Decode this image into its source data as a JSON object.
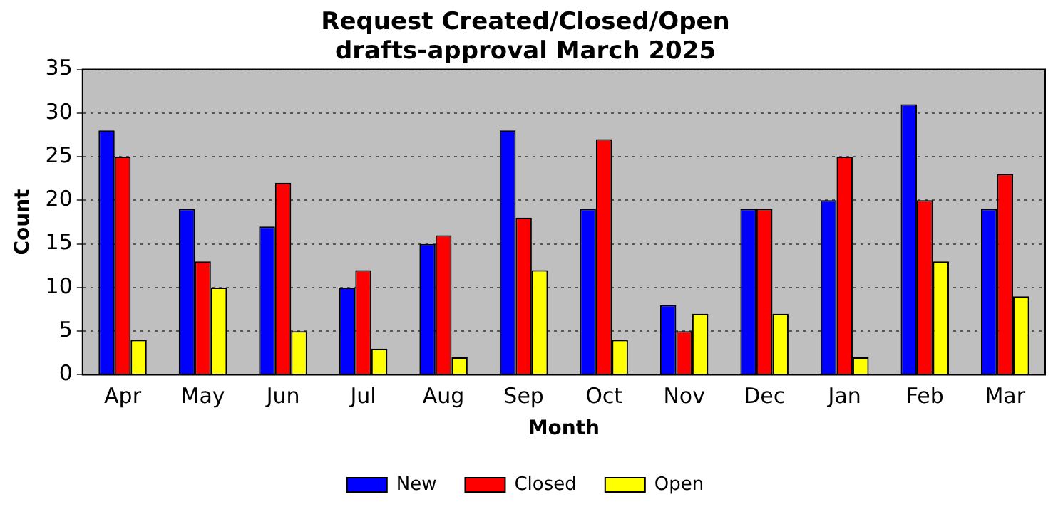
{
  "chart_data": {
    "type": "bar",
    "title": "Request Created/Closed/Open\ndrafts-approval March 2025",
    "xlabel": "Month",
    "ylabel": "Count",
    "categories": [
      "Apr",
      "May",
      "Jun",
      "Jul",
      "Aug",
      "Sep",
      "Oct",
      "Nov",
      "Dec",
      "Jan",
      "Feb",
      "Mar"
    ],
    "series": [
      {
        "name": "New",
        "color": "#0000ff",
        "values": [
          28,
          19,
          17,
          10,
          15,
          28,
          19,
          8,
          19,
          20,
          31,
          19
        ]
      },
      {
        "name": "Closed",
        "color": "#ff0000",
        "values": [
          25,
          13,
          22,
          12,
          16,
          18,
          27,
          5,
          19,
          25,
          20,
          23
        ]
      },
      {
        "name": "Open",
        "color": "#ffff00",
        "values": [
          4,
          10,
          5,
          3,
          2,
          12,
          4,
          7,
          7,
          2,
          13,
          9
        ]
      }
    ],
    "ylim": [
      0,
      35
    ],
    "yticks": [
      0,
      5,
      10,
      15,
      20,
      25,
      30,
      35
    ],
    "grid": "y",
    "legend": "bottom"
  }
}
